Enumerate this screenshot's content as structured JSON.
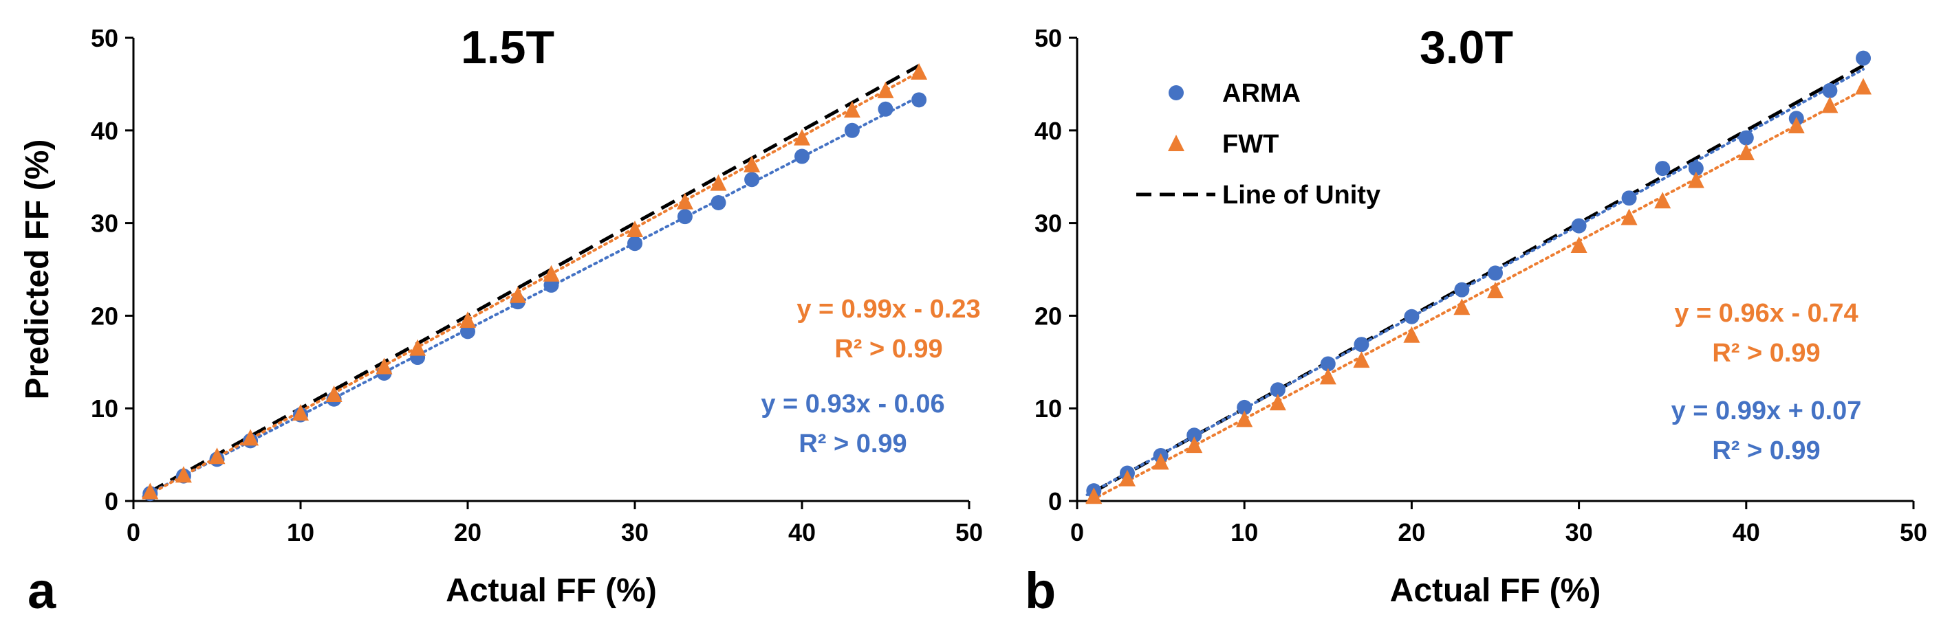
{
  "chart_data": [
    {
      "type": "scatter",
      "panel_label": "a",
      "title": "1.5T",
      "xlabel": "Actual FF (%)",
      "ylabel": "Predicted FF (%)",
      "xlim": [
        0,
        50
      ],
      "ylim": [
        0,
        50
      ],
      "xticks": [
        0,
        10,
        20,
        30,
        40,
        50
      ],
      "yticks": [
        0,
        10,
        20,
        30,
        40,
        50
      ],
      "show_legend": false,
      "series": [
        {
          "name": "ARMA",
          "marker": "circle",
          "color": "#4472C4",
          "x": [
            1,
            3,
            5,
            7,
            10,
            12,
            15,
            17,
            20,
            23,
            25,
            30,
            33,
            35,
            37,
            40,
            43,
            45,
            47
          ],
          "y": [
            0.8,
            2.7,
            4.5,
            6.5,
            9.3,
            11.0,
            13.8,
            15.5,
            18.3,
            21.5,
            23.3,
            27.8,
            30.7,
            32.2,
            34.7,
            37.2,
            40.0,
            42.3,
            43.3
          ],
          "fit": {
            "slope": 0.93,
            "intercept": -0.06,
            "equation": "y = 0.93x - 0.06",
            "r2": "R² > 0.99"
          }
        },
        {
          "name": "FWT",
          "marker": "triangle",
          "color": "#ED7D31",
          "x": [
            1,
            3,
            5,
            7,
            10,
            12,
            15,
            17,
            20,
            23,
            25,
            30,
            33,
            35,
            37,
            40,
            43,
            45,
            47
          ],
          "y": [
            1.0,
            2.8,
            4.8,
            6.8,
            9.5,
            11.5,
            14.5,
            16.5,
            19.5,
            22.2,
            24.5,
            29.3,
            32.3,
            34.3,
            36.3,
            39.2,
            42.2,
            44.3,
            46.3
          ],
          "fit": {
            "slope": 0.99,
            "intercept": -0.23,
            "equation": "y = 0.99x - 0.23",
            "r2": "R² > 0.99"
          }
        }
      ],
      "unity_line": {
        "name": "Line of Unity",
        "color": "#000000"
      }
    },
    {
      "type": "scatter",
      "panel_label": "b",
      "title": "3.0T",
      "xlabel": "Actual FF (%)",
      "ylabel": "",
      "xlim": [
        0,
        50
      ],
      "ylim": [
        0,
        50
      ],
      "xticks": [
        0,
        10,
        20,
        30,
        40,
        50
      ],
      "yticks": [
        0,
        10,
        20,
        30,
        40,
        50
      ],
      "show_legend": true,
      "legend": [
        {
          "label": "ARMA",
          "marker": "circle",
          "color": "#4472C4"
        },
        {
          "label": "FWT",
          "marker": "triangle",
          "color": "#ED7D31"
        },
        {
          "label": "Line of Unity",
          "marker": "dash",
          "color": "#000000"
        }
      ],
      "series": [
        {
          "name": "ARMA",
          "marker": "circle",
          "color": "#4472C4",
          "x": [
            1,
            3,
            5,
            7,
            10,
            12,
            15,
            17,
            20,
            23,
            25,
            30,
            33,
            35,
            37,
            40,
            43,
            45,
            47
          ],
          "y": [
            1.1,
            3.0,
            4.9,
            7.1,
            10.1,
            12.0,
            14.8,
            16.9,
            19.9,
            22.8,
            24.6,
            29.7,
            32.7,
            35.9,
            35.9,
            39.2,
            41.3,
            44.3,
            47.8
          ],
          "fit": {
            "slope": 0.99,
            "intercept": 0.07,
            "equation": "y = 0.99x + 0.07",
            "r2": "R² > 0.99"
          }
        },
        {
          "name": "FWT",
          "marker": "triangle",
          "color": "#ED7D31",
          "x": [
            1,
            3,
            5,
            7,
            10,
            12,
            15,
            17,
            20,
            23,
            25,
            30,
            33,
            35,
            37,
            40,
            43,
            45,
            47
          ],
          "y": [
            0.5,
            2.4,
            4.2,
            6.0,
            8.8,
            10.6,
            13.4,
            15.2,
            17.9,
            20.9,
            22.7,
            27.6,
            30.6,
            32.4,
            34.6,
            37.6,
            40.5,
            42.7,
            44.7
          ],
          "fit": {
            "slope": 0.96,
            "intercept": -0.74,
            "equation": "y = 0.96x - 0.74",
            "r2": "R² > 0.99"
          }
        }
      ],
      "unity_line": {
        "name": "Line of Unity",
        "color": "#000000"
      }
    }
  ]
}
